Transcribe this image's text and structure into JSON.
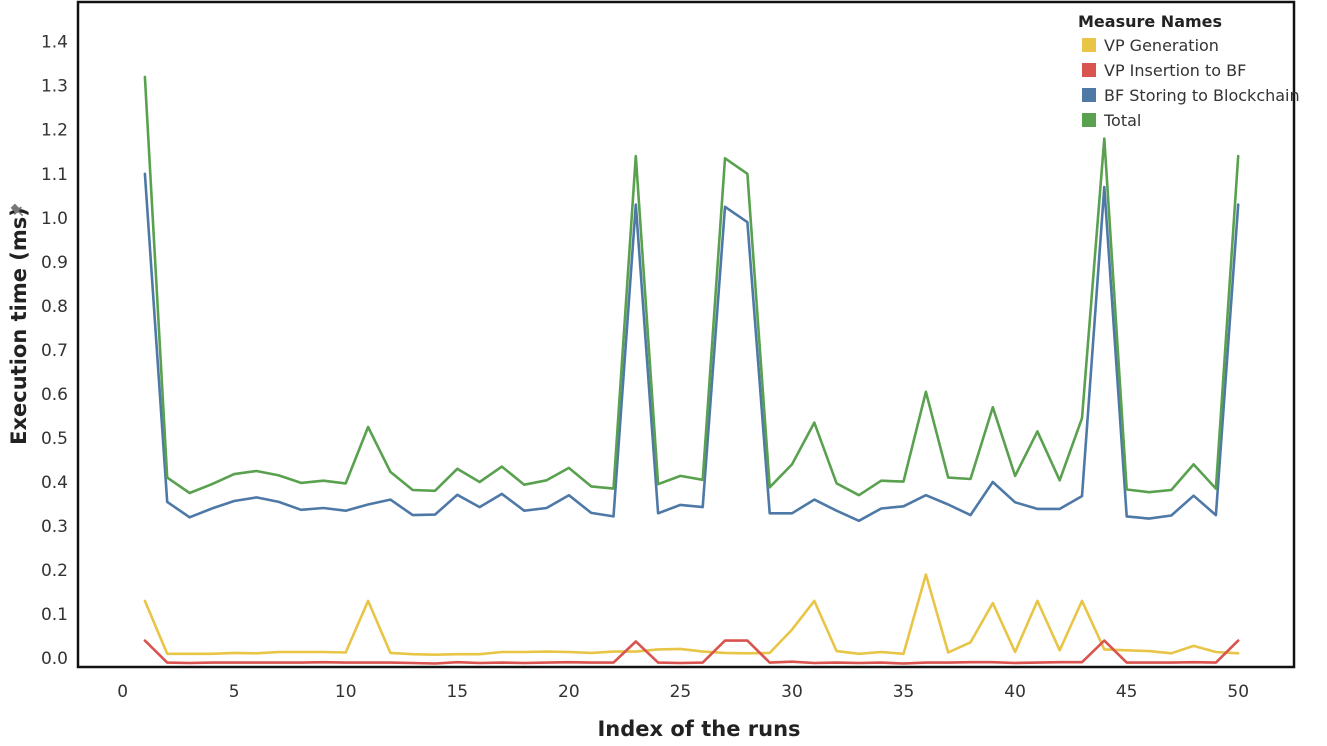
{
  "chart_data": {
    "type": "line",
    "xlabel": "Index of the runs",
    "ylabel": "Execution time (ms)",
    "xlim": [
      -2,
      52.5
    ],
    "ylim": [
      -0.02,
      1.49
    ],
    "x_ticks": [
      0,
      5,
      10,
      15,
      20,
      25,
      30,
      35,
      40,
      45,
      50
    ],
    "y_ticks": [
      0.0,
      0.1,
      0.2,
      0.3,
      0.4,
      0.5,
      0.6,
      0.7,
      0.8,
      0.9,
      1.0,
      1.1,
      1.2,
      1.3,
      1.4
    ],
    "y_tick_labels": [
      "0.0",
      "0.1",
      "0.2",
      "0.3",
      "0.4",
      "0.5",
      "0.6",
      "0.7",
      "0.8",
      "0.9",
      "1.0",
      "1.1",
      "1.2",
      "1.3",
      "1.4"
    ],
    "legend_title": "Measure Names",
    "legend_position": "top-right",
    "grid": false,
    "x": [
      1,
      2,
      3,
      4,
      5,
      6,
      7,
      8,
      9,
      10,
      11,
      12,
      13,
      14,
      15,
      16,
      17,
      18,
      19,
      20,
      21,
      22,
      23,
      24,
      25,
      26,
      27,
      28,
      29,
      30,
      31,
      32,
      33,
      34,
      35,
      36,
      37,
      38,
      39,
      40,
      41,
      42,
      43,
      44,
      45,
      46,
      47,
      48,
      49,
      50
    ],
    "series": [
      {
        "name": "VP Generation",
        "color": "#e8c547",
        "values": [
          0.13,
          0.01,
          0.01,
          0.01,
          0.012,
          0.011,
          0.014,
          0.014,
          0.014,
          0.013,
          0.13,
          0.012,
          0.009,
          0.008,
          0.009,
          0.009,
          0.014,
          0.014,
          0.015,
          0.014,
          0.012,
          0.015,
          0.015,
          0.02,
          0.021,
          0.015,
          0.012,
          0.011,
          0.012,
          0.065,
          0.13,
          0.016,
          0.01,
          0.014,
          0.01,
          0.19,
          0.013,
          0.036,
          0.125,
          0.014,
          0.13,
          0.018,
          0.13,
          0.02,
          0.018,
          0.016,
          0.011,
          0.028,
          0.014,
          0.011
        ]
      },
      {
        "name": "VP Insertion to BF",
        "color": "#d9534f",
        "values": [
          0.04,
          -0.01,
          -0.011,
          -0.01,
          -0.01,
          -0.01,
          -0.01,
          -0.01,
          -0.009,
          -0.01,
          -0.01,
          -0.01,
          -0.011,
          -0.012,
          -0.009,
          -0.011,
          -0.01,
          -0.011,
          -0.01,
          -0.009,
          -0.01,
          -0.01,
          0.038,
          -0.01,
          -0.011,
          -0.01,
          0.04,
          0.04,
          -0.01,
          -0.008,
          -0.011,
          -0.01,
          -0.011,
          -0.01,
          -0.012,
          -0.01,
          -0.01,
          -0.009,
          -0.009,
          -0.011,
          -0.01,
          -0.009,
          -0.009,
          0.04,
          -0.01,
          -0.01,
          -0.01,
          -0.009,
          -0.01,
          0.04
        ]
      },
      {
        "name": "BF Storing to Blockchain",
        "color": "#4e79a7",
        "values": [
          1.1,
          0.355,
          0.32,
          0.34,
          0.357,
          0.365,
          0.355,
          0.337,
          0.341,
          0.335,
          0.349,
          0.36,
          0.325,
          0.326,
          0.371,
          0.343,
          0.373,
          0.335,
          0.341,
          0.37,
          0.33,
          0.322,
          1.03,
          0.329,
          0.348,
          0.343,
          1.025,
          0.99,
          0.329,
          0.329,
          0.36,
          0.335,
          0.312,
          0.34,
          0.345,
          0.37,
          0.349,
          0.325,
          0.4,
          0.354,
          0.339,
          0.339,
          0.368,
          1.07,
          0.322,
          0.317,
          0.324,
          0.369,
          0.325,
          1.03
        ]
      },
      {
        "name": "Total",
        "color": "#59a14f",
        "values": [
          1.32,
          0.41,
          0.375,
          0.395,
          0.418,
          0.425,
          0.415,
          0.398,
          0.403,
          0.397,
          0.525,
          0.423,
          0.382,
          0.38,
          0.43,
          0.4,
          0.435,
          0.394,
          0.404,
          0.432,
          0.39,
          0.385,
          1.14,
          0.395,
          0.414,
          0.405,
          1.135,
          1.1,
          0.388,
          0.44,
          0.535,
          0.397,
          0.37,
          0.403,
          0.401,
          0.605,
          0.41,
          0.407,
          0.57,
          0.414,
          0.515,
          0.404,
          0.545,
          1.18,
          0.383,
          0.377,
          0.382,
          0.44,
          0.385,
          1.14
        ]
      }
    ]
  }
}
